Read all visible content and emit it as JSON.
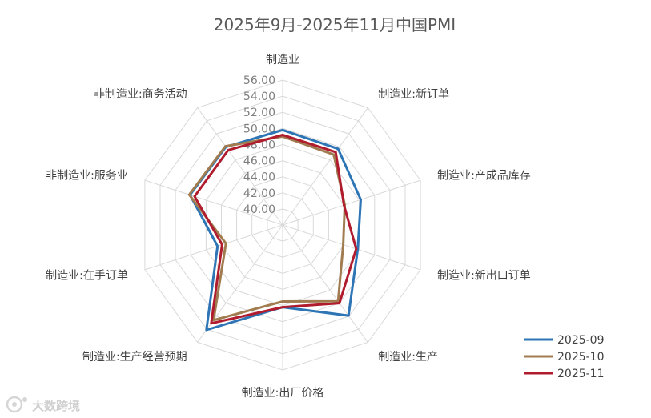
{
  "chart_data": {
    "type": "radar",
    "title": "2025年9月-2025年11月中国PMI",
    "categories": [
      "制造业",
      "制造业:新订单",
      "制造业:产成品库存",
      "制造业:新出口订单",
      "制造业:生产",
      "制造业:出厂价格",
      "制造业:生产经营预期",
      "制造业:在手订单",
      "非制造业:服务业",
      "非制造业:商务活动"
    ],
    "ticks": [
      "40.00",
      "42.00",
      "44.00",
      "46.00",
      "48.00",
      "50.00",
      "52.00",
      "54.00",
      "56.00"
    ],
    "rmin": 38,
    "rmax": 56,
    "grid": true,
    "legend_position": "bottom-right",
    "series": [
      {
        "name": "2025-09",
        "color": "#2e75b6",
        "values": [
          49.8,
          49.7,
          48.2,
          47.8,
          51.9,
          48.2,
          54.1,
          46.5,
          50.1,
          50.0
        ]
      },
      {
        "name": "2025-10",
        "color": "#a07c50",
        "values": [
          49.0,
          48.8,
          46.1,
          45.9,
          49.7,
          47.5,
          52.6,
          45.4,
          50.2,
          50.1
        ]
      },
      {
        "name": "2025-11",
        "color": "#b01c2e",
        "values": [
          49.2,
          49.2,
          46.0,
          47.6,
          50.0,
          48.2,
          53.1,
          45.9,
          49.5,
          49.5
        ]
      }
    ]
  },
  "watermark": {
    "text": "大数跨境"
  }
}
